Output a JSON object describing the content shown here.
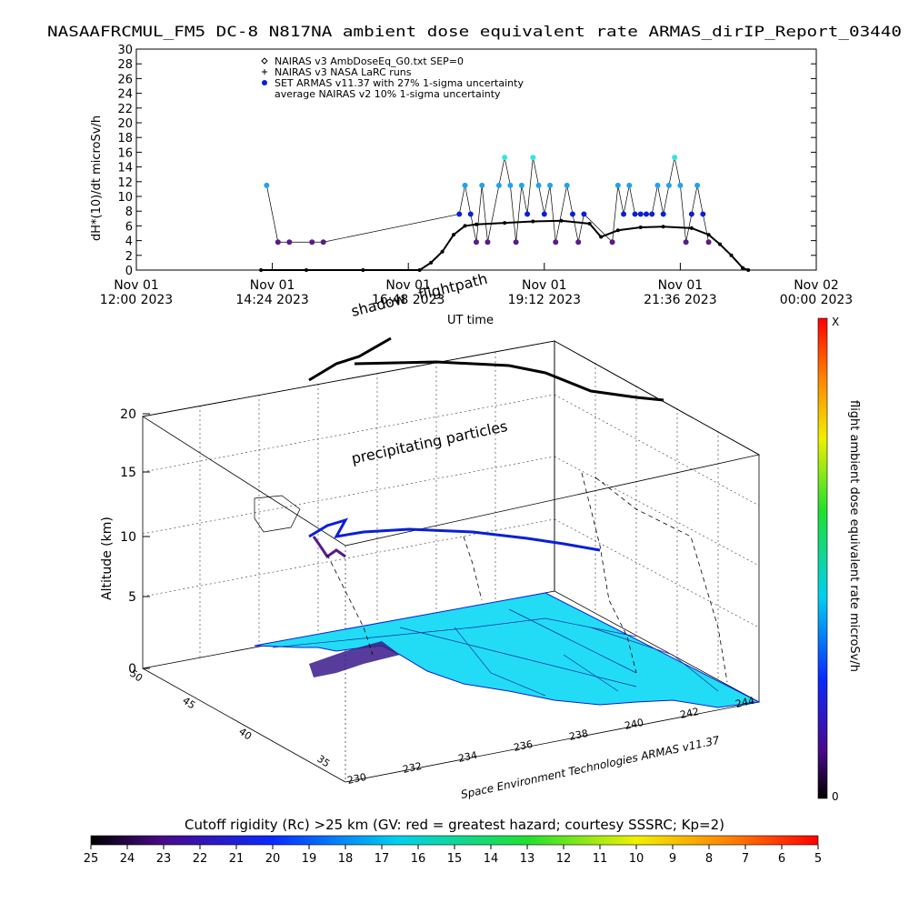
{
  "title": "NASAAFRCMUL_FM5 DC-8    N817NA ambient dose equivalent rate ARMAS_dirIP_Report_03440",
  "colors": {
    "nairas_ambdose": "#000000",
    "nairas_larc": "#000000",
    "armas": "#0a1fd6",
    "armas_high": "#1fa3f0",
    "armas_low": "#5a1a8a",
    "nairas_v2": "#000000",
    "surface": "#22dcf5",
    "flight": "#0a1fd6"
  },
  "chart_data": [
    {
      "type": "scatter",
      "name": "dose-rate-timeseries",
      "xlabel": "UT time",
      "ylabel": "dH*(10)/dt microSv/h",
      "xlim": [
        0,
        12
      ],
      "ylim": [
        0,
        30
      ],
      "ytick_values": [
        0,
        2,
        4,
        6,
        8,
        10,
        12,
        14,
        16,
        18,
        20,
        22,
        24,
        26,
        28,
        30
      ],
      "ytick_labels": [
        "0",
        "2",
        "4",
        "6",
        "8",
        "10",
        "12",
        "14",
        "16",
        "18",
        "20",
        "22",
        "24",
        "26",
        "28",
        "30"
      ],
      "xtick_values": [
        0,
        2.4,
        4.8,
        7.2,
        9.6,
        12
      ],
      "xtick_labels": [
        {
          "date": "Nov 01",
          "time": "12:00 2023"
        },
        {
          "date": "Nov 01",
          "time": "14:24 2023"
        },
        {
          "date": "Nov 01",
          "time": "16:48 2023"
        },
        {
          "date": "Nov 01",
          "time": "19:12 2023"
        },
        {
          "date": "Nov 01",
          "time": "21:36 2023"
        },
        {
          "date": "Nov 02",
          "time": "00:00 2023"
        }
      ],
      "legend": [
        "NAIRAS v3 AmbDoseEq_G0.txt SEP=0",
        "NAIRAS v3 NASA LaRC runs",
        "SET ARMAS v11.37 with 27% 1-sigma uncertainty",
        "average NAIRAS v2 10% 1-sigma uncertainty"
      ],
      "legend_placement": "top-left",
      "series": [
        {
          "name": "NAIRAS v3 AmbDoseEq_G0.txt SEP=0",
          "x": [
            2.2,
            3.0,
            4.0,
            5.0,
            5.2,
            5.4,
            5.6,
            5.8,
            6.0,
            6.5,
            7.0,
            7.5,
            8.0,
            8.2,
            8.5,
            8.9,
            9.3,
            9.8,
            10.1,
            10.3,
            10.5,
            10.7,
            10.8
          ],
          "y": [
            0,
            0,
            0,
            0,
            1.0,
            2.5,
            4.8,
            6.0,
            6.2,
            6.4,
            6.6,
            6.7,
            6.3,
            4.5,
            5.4,
            5.8,
            5.9,
            5.7,
            4.8,
            3.5,
            2.0,
            0.3,
            0
          ]
        },
        {
          "name": "SET ARMAS v11.37 with 27% 1-sigma uncertainty",
          "x": [
            2.3,
            2.5,
            2.7,
            3.1,
            3.3,
            5.7,
            5.8,
            5.9,
            6.0,
            6.1,
            6.2,
            6.4,
            6.5,
            6.6,
            6.7,
            6.8,
            6.9,
            7.0,
            7.1,
            7.2,
            7.3,
            7.4,
            7.6,
            7.7,
            7.8,
            7.9,
            8.4,
            8.5,
            8.6,
            8.7,
            8.8,
            8.9,
            9.0,
            9.1,
            9.2,
            9.3,
            9.4,
            9.5,
            9.6,
            9.7,
            9.8,
            9.9,
            10.0,
            10.1
          ],
          "y": [
            11.5,
            3.8,
            3.8,
            3.8,
            3.8,
            7.6,
            11.5,
            7.6,
            3.8,
            11.5,
            3.8,
            11.5,
            15.3,
            11.5,
            3.8,
            11.5,
            7.6,
            15.3,
            11.5,
            7.6,
            11.5,
            3.8,
            11.5,
            7.6,
            3.8,
            7.6,
            3.8,
            11.5,
            7.6,
            11.5,
            7.6,
            7.6,
            7.6,
            7.6,
            11.5,
            7.6,
            11.5,
            15.3,
            11.5,
            3.8,
            7.6,
            11.5,
            7.6,
            3.8
          ]
        }
      ]
    },
    {
      "type": "scatter",
      "name": "3d-flight-visualization",
      "zlabel": "Altitude (km)",
      "zticks": [
        "0",
        "5",
        "10",
        "15",
        "20"
      ],
      "latitude_ticks": [
        "35",
        "40",
        "45",
        "50"
      ],
      "longitude_ticks": [
        "230",
        "232",
        "234",
        "236",
        "238",
        "240",
        "242",
        "244"
      ],
      "annotations": [
        "shadow",
        "flightpath",
        "precipitating particles",
        "UT time"
      ],
      "credit": "Space Environment Technologies ARMAS v11.37",
      "right_colorbar": {
        "label": "flight ambient dose equivalent rate microSv/h",
        "top": "X",
        "bottom": "0"
      },
      "bottom_colorbar": {
        "label": "Cutoff rigidity (Rc) >25 km (GV: red = greatest hazard; courtesy SSSRC; Kp=2)",
        "ticks": [
          "25",
          "24",
          "23",
          "22",
          "21",
          "20",
          "19",
          "18",
          "17",
          "16",
          "15",
          "14",
          "13",
          "12",
          "11",
          "10",
          "9",
          "8",
          "7",
          "6",
          "5"
        ]
      }
    }
  ]
}
